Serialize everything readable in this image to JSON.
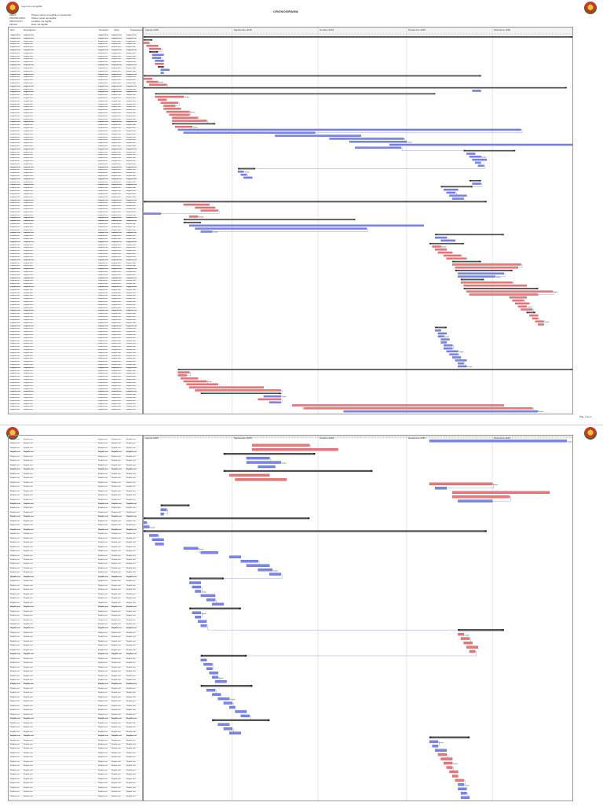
{
  "document": {
    "company_line": "Logo text not legible",
    "summary_label": "CRONOGRAMA",
    "info_labels": [
      "OBRA",
      "PROPIETARIO",
      "UBICACION",
      "FECHA"
    ],
    "info_values": [
      "Project name not legible in screenshot",
      "Owner name not legible",
      "Location not legible",
      "Date not legible"
    ],
    "columns": [
      "Item",
      "Descripcion",
      "Duracion",
      "Inicio",
      "Fin",
      "Predecesoras"
    ],
    "timeline_months": [
      "Agosto 2015",
      "Septiembre 2015",
      "Octubre 2015",
      "Noviembre 2015",
      "Diciembre 2015"
    ],
    "page_label": "Pag. 1 de 2",
    "placeholder_row_text": "Illegible text"
  },
  "colors": {
    "critical": "#e8787a",
    "critical_edge": "#c8383a",
    "normal": "#7a86e8",
    "normal_edge": "#3a46c8",
    "summary": "#555555",
    "link": "#3a46c8"
  },
  "chart_data": [
    {
      "type": "gantt",
      "title": "Schedule - page 1",
      "time_unit": "day index from start of August 2015",
      "axis_range": [
        0,
        150
      ],
      "month_ticks": [
        0,
        31,
        61,
        92,
        122
      ],
      "tasks": [
        {
          "s": 0,
          "d": 150,
          "c": "summary"
        },
        {
          "s": 0,
          "d": 3,
          "c": "summary"
        },
        {
          "s": 0,
          "d": 2,
          "c": "critical"
        },
        {
          "s": 1,
          "d": 4,
          "c": "critical"
        },
        {
          "s": 2,
          "d": 4,
          "c": "critical"
        },
        {
          "s": 2,
          "d": 3,
          "c": "summary"
        },
        {
          "s": 3,
          "d": 4,
          "c": "normal"
        },
        {
          "s": 3,
          "d": 3,
          "c": "normal"
        },
        {
          "s": 4,
          "d": 3,
          "c": "normal"
        },
        {
          "s": 4,
          "d": 3,
          "c": "critical"
        },
        {
          "s": 5,
          "d": 2,
          "c": "summary"
        },
        {
          "s": 6,
          "d": 3,
          "c": "normal"
        },
        {
          "s": 6,
          "d": 1,
          "c": "normal"
        },
        {
          "s": 0,
          "d": 118,
          "c": "summary"
        },
        {
          "s": 0,
          "d": 3,
          "c": "critical"
        },
        {
          "s": 1,
          "d": 4,
          "c": "critical"
        },
        {
          "s": 2,
          "d": 6,
          "c": "critical"
        },
        {
          "s": 0,
          "d": 148,
          "c": "summary"
        },
        {
          "s": 115,
          "d": 3,
          "c": "normal"
        },
        {
          "s": 4,
          "d": 98,
          "c": "summary"
        },
        {
          "s": 4,
          "d": 10,
          "c": "critical"
        },
        {
          "s": 5,
          "d": 3,
          "c": "critical"
        },
        {
          "s": 6,
          "d": 6,
          "c": "critical"
        },
        {
          "s": 7,
          "d": 4,
          "c": "critical"
        },
        {
          "s": 7,
          "d": 6,
          "c": "critical"
        },
        {
          "s": 8,
          "d": 8,
          "c": "critical"
        },
        {
          "s": 9,
          "d": 7,
          "c": "critical"
        },
        {
          "s": 10,
          "d": 9,
          "c": "critical"
        },
        {
          "s": 10,
          "d": 12,
          "c": "critical"
        },
        {
          "s": 10,
          "d": 15,
          "c": "summary"
        },
        {
          "s": 11,
          "d": 6,
          "c": "critical"
        },
        {
          "s": 12,
          "d": 120,
          "c": "normal"
        },
        {
          "s": 14,
          "d": 46,
          "c": "normal"
        },
        {
          "s": 46,
          "d": 30,
          "c": "normal"
        },
        {
          "s": 65,
          "d": 26,
          "c": "normal"
        },
        {
          "s": 72,
          "d": 20,
          "c": "normal"
        },
        {
          "s": 86,
          "d": 64,
          "c": "normal"
        },
        {
          "s": 74,
          "d": 16,
          "c": "normal"
        },
        {
          "s": 112,
          "d": 18,
          "c": "summary"
        },
        {
          "s": 113,
          "d": 3,
          "c": "normal"
        },
        {
          "s": 114,
          "d": 4,
          "c": "normal"
        },
        {
          "s": 115,
          "d": 5,
          "c": "normal"
        },
        {
          "s": 116,
          "d": 2,
          "c": "normal"
        },
        {
          "s": 117,
          "d": 2,
          "c": "normal"
        },
        {
          "s": 33,
          "d": 6,
          "c": "summary"
        },
        {
          "s": 33,
          "d": 2,
          "c": "normal"
        },
        {
          "s": 34,
          "d": 2,
          "c": "normal"
        },
        {
          "s": 35,
          "d": 3,
          "c": "normal"
        },
        {
          "s": 114,
          "d": 4,
          "c": "summary"
        },
        {
          "s": 115,
          "d": 3,
          "c": "normal"
        },
        {
          "s": 104,
          "d": 11,
          "c": "summary"
        },
        {
          "s": 105,
          "d": 5,
          "c": "normal"
        },
        {
          "s": 106,
          "d": 3,
          "c": "normal"
        },
        {
          "s": 107,
          "d": 6,
          "c": "normal"
        },
        {
          "s": 108,
          "d": 4,
          "c": "normal"
        },
        {
          "s": 0,
          "d": 120,
          "c": "summary"
        },
        {
          "s": 14,
          "d": 9,
          "c": "critical"
        },
        {
          "s": 18,
          "d": 7,
          "c": "critical"
        },
        {
          "s": 20,
          "d": 6,
          "c": "critical"
        },
        {
          "s": 0,
          "d": 6,
          "c": "normal"
        },
        {
          "s": 16,
          "d": 3,
          "c": "critical"
        },
        {
          "s": 14,
          "d": 60,
          "c": "summary"
        },
        {
          "s": 14,
          "d": 6,
          "c": "summary"
        },
        {
          "s": 16,
          "d": 82,
          "c": "normal"
        },
        {
          "s": 18,
          "d": 60,
          "c": "normal"
        },
        {
          "s": 20,
          "d": 4,
          "c": "normal"
        },
        {
          "s": 102,
          "d": 24,
          "c": "summary"
        },
        {
          "s": 102,
          "d": 4,
          "c": "normal"
        },
        {
          "s": 104,
          "d": 5,
          "c": "normal"
        },
        {
          "s": 100,
          "d": 12,
          "c": "summary"
        },
        {
          "s": 101,
          "d": 3,
          "c": "critical"
        },
        {
          "s": 102,
          "d": 4,
          "c": "critical"
        },
        {
          "s": 103,
          "d": 5,
          "c": "critical"
        },
        {
          "s": 105,
          "d": 6,
          "c": "critical"
        },
        {
          "s": 106,
          "d": 7,
          "c": "critical"
        },
        {
          "s": 108,
          "d": 10,
          "c": "summary"
        },
        {
          "s": 108,
          "d": 24,
          "c": "critical"
        },
        {
          "s": 109,
          "d": 22,
          "c": "critical"
        },
        {
          "s": 109,
          "d": 20,
          "c": "summary"
        },
        {
          "s": 110,
          "d": 16,
          "c": "normal"
        },
        {
          "s": 110,
          "d": 13,
          "c": "normal"
        },
        {
          "s": 111,
          "d": 8,
          "c": "summary"
        },
        {
          "s": 111,
          "d": 18,
          "c": "critical"
        },
        {
          "s": 112,
          "d": 22,
          "c": "critical"
        },
        {
          "s": 112,
          "d": 26,
          "c": "summary"
        },
        {
          "s": 113,
          "d": 30,
          "c": "critical"
        },
        {
          "s": 114,
          "d": 24,
          "c": "critical"
        },
        {
          "s": 128,
          "d": 6,
          "c": "critical"
        },
        {
          "s": 129,
          "d": 4,
          "c": "critical"
        },
        {
          "s": 130,
          "d": 5,
          "c": "critical"
        },
        {
          "s": 131,
          "d": 3,
          "c": "critical"
        },
        {
          "s": 132,
          "d": 4,
          "c": "critical"
        },
        {
          "s": 134,
          "d": 3,
          "c": "summary"
        },
        {
          "s": 135,
          "d": 3,
          "c": "critical"
        },
        {
          "s": 136,
          "d": 2,
          "c": "critical"
        },
        {
          "s": 137,
          "d": 3,
          "c": "critical"
        },
        {
          "s": 138,
          "d": 2,
          "c": "critical"
        },
        {
          "s": 102,
          "d": 4,
          "c": "summary"
        },
        {
          "s": 102,
          "d": 2,
          "c": "normal"
        },
        {
          "s": 103,
          "d": 3,
          "c": "normal"
        },
        {
          "s": 103,
          "d": 2,
          "c": "normal"
        },
        {
          "s": 104,
          "d": 3,
          "c": "normal"
        },
        {
          "s": 104,
          "d": 2,
          "c": "normal"
        },
        {
          "s": 105,
          "d": 3,
          "c": "normal"
        },
        {
          "s": 105,
          "d": 3,
          "c": "normal"
        },
        {
          "s": 106,
          "d": 4,
          "c": "normal"
        },
        {
          "s": 107,
          "d": 3,
          "c": "normal"
        },
        {
          "s": 108,
          "d": 3,
          "c": "normal"
        },
        {
          "s": 109,
          "d": 4,
          "c": "normal"
        },
        {
          "s": 110,
          "d": 2,
          "c": "normal"
        },
        {
          "s": 110,
          "d": 3,
          "c": "normal"
        },
        {
          "s": 12,
          "d": 138,
          "c": "summary"
        },
        {
          "s": 12,
          "d": 4,
          "c": "critical"
        },
        {
          "s": 12,
          "d": 3,
          "c": "critical"
        },
        {
          "s": 13,
          "d": 6,
          "c": "critical"
        },
        {
          "s": 14,
          "d": 8,
          "c": "critical"
        },
        {
          "s": 15,
          "d": 11,
          "c": "critical"
        },
        {
          "s": 16,
          "d": 26,
          "c": "critical"
        },
        {
          "s": 18,
          "d": 30,
          "c": "critical"
        },
        {
          "s": 20,
          "d": 28,
          "c": "summary"
        },
        {
          "s": 42,
          "d": 6,
          "c": "normal"
        },
        {
          "s": 40,
          "d": 8,
          "c": "critical"
        },
        {
          "s": 44,
          "d": 4,
          "c": "normal"
        },
        {
          "s": 52,
          "d": 74,
          "c": "critical"
        },
        {
          "s": 56,
          "d": 80,
          "c": "critical"
        },
        {
          "s": 70,
          "d": 68,
          "c": "normal"
        }
      ]
    },
    {
      "type": "gantt",
      "title": "Schedule - page 2",
      "time_unit": "day index from start of August 2015",
      "axis_range": [
        0,
        150
      ],
      "month_ticks": [
        0,
        31,
        61,
        92,
        122
      ],
      "tasks": [
        {
          "s": 100,
          "d": 48,
          "c": "normal"
        },
        {
          "s": 38,
          "d": 20,
          "c": "critical"
        },
        {
          "s": 38,
          "d": 30,
          "c": "critical"
        },
        {
          "s": 28,
          "d": 32,
          "c": "summary"
        },
        {
          "s": 36,
          "d": 8,
          "c": "normal"
        },
        {
          "s": 36,
          "d": 12,
          "c": "normal"
        },
        {
          "s": 40,
          "d": 6,
          "c": "normal"
        },
        {
          "s": 28,
          "d": 52,
          "c": "summary"
        },
        {
          "s": 30,
          "d": 14,
          "c": "critical"
        },
        {
          "s": 32,
          "d": 18,
          "c": "critical"
        },
        {
          "s": 100,
          "d": 22,
          "c": "critical"
        },
        {
          "s": 102,
          "d": 4,
          "c": "normal"
        },
        {
          "s": 108,
          "d": 34,
          "c": "critical"
        },
        {
          "s": 108,
          "d": 20,
          "c": "critical"
        },
        {
          "s": 110,
          "d": 12,
          "c": "normal"
        },
        {
          "s": 6,
          "d": 10,
          "c": "summary"
        },
        {
          "s": 6,
          "d": 2,
          "c": "normal"
        },
        {
          "s": 6,
          "d": 1,
          "c": "normal"
        },
        {
          "s": 0,
          "d": 58,
          "c": "summary"
        },
        {
          "s": 0,
          "d": 1,
          "c": "normal"
        },
        {
          "s": 0,
          "d": 2,
          "c": "normal"
        },
        {
          "s": 0,
          "d": 120,
          "c": "summary"
        },
        {
          "s": 2,
          "d": 3,
          "c": "normal"
        },
        {
          "s": 3,
          "d": 4,
          "c": "normal"
        },
        {
          "s": 4,
          "d": 3,
          "c": "normal"
        },
        {
          "s": 14,
          "d": 5,
          "c": "normal"
        },
        {
          "s": 20,
          "d": 6,
          "c": "normal"
        },
        {
          "s": 30,
          "d": 4,
          "c": "normal"
        },
        {
          "s": 34,
          "d": 6,
          "c": "normal"
        },
        {
          "s": 36,
          "d": 8,
          "c": "normal"
        },
        {
          "s": 40,
          "d": 5,
          "c": "normal"
        },
        {
          "s": 44,
          "d": 4,
          "c": "normal"
        },
        {
          "s": 16,
          "d": 12,
          "c": "summary"
        },
        {
          "s": 16,
          "d": 4,
          "c": "normal"
        },
        {
          "s": 17,
          "d": 3,
          "c": "normal"
        },
        {
          "s": 18,
          "d": 2,
          "c": "normal"
        },
        {
          "s": 20,
          "d": 5,
          "c": "normal"
        },
        {
          "s": 22,
          "d": 3,
          "c": "normal"
        },
        {
          "s": 24,
          "d": 4,
          "c": "normal"
        },
        {
          "s": 16,
          "d": 18,
          "c": "summary"
        },
        {
          "s": 17,
          "d": 3,
          "c": "normal"
        },
        {
          "s": 18,
          "d": 2,
          "c": "normal"
        },
        {
          "s": 19,
          "d": 3,
          "c": "normal"
        },
        {
          "s": 20,
          "d": 2,
          "c": "normal"
        },
        {
          "s": 110,
          "d": 16,
          "c": "summary"
        },
        {
          "s": 110,
          "d": 2,
          "c": "critical"
        },
        {
          "s": 111,
          "d": 3,
          "c": "critical"
        },
        {
          "s": 112,
          "d": 3,
          "c": "critical"
        },
        {
          "s": 113,
          "d": 4,
          "c": "critical"
        },
        {
          "s": 114,
          "d": 2,
          "c": "critical"
        },
        {
          "s": 20,
          "d": 16,
          "c": "summary"
        },
        {
          "s": 20,
          "d": 2,
          "c": "normal"
        },
        {
          "s": 21,
          "d": 3,
          "c": "normal"
        },
        {
          "s": 22,
          "d": 2,
          "c": "normal"
        },
        {
          "s": 23,
          "d": 3,
          "c": "normal"
        },
        {
          "s": 24,
          "d": 2,
          "c": "normal"
        },
        {
          "s": 25,
          "d": 4,
          "c": "normal"
        },
        {
          "s": 20,
          "d": 18,
          "c": "summary"
        },
        {
          "s": 22,
          "d": 3,
          "c": "normal"
        },
        {
          "s": 24,
          "d": 3,
          "c": "normal"
        },
        {
          "s": 26,
          "d": 4,
          "c": "normal"
        },
        {
          "s": 28,
          "d": 3,
          "c": "normal"
        },
        {
          "s": 30,
          "d": 2,
          "c": "normal"
        },
        {
          "s": 32,
          "d": 4,
          "c": "normal"
        },
        {
          "s": 34,
          "d": 3,
          "c": "normal"
        },
        {
          "s": 24,
          "d": 20,
          "c": "summary"
        },
        {
          "s": 26,
          "d": 4,
          "c": "normal"
        },
        {
          "s": 28,
          "d": 3,
          "c": "normal"
        },
        {
          "s": 30,
          "d": 4,
          "c": "normal"
        },
        {
          "s": 100,
          "d": 14,
          "c": "summary"
        },
        {
          "s": 100,
          "d": 3,
          "c": "normal"
        },
        {
          "s": 101,
          "d": 2,
          "c": "normal"
        },
        {
          "s": 102,
          "d": 4,
          "c": "normal"
        },
        {
          "s": 103,
          "d": 3,
          "c": "critical"
        },
        {
          "s": 104,
          "d": 4,
          "c": "critical"
        },
        {
          "s": 105,
          "d": 3,
          "c": "critical"
        },
        {
          "s": 106,
          "d": 2,
          "c": "critical"
        },
        {
          "s": 107,
          "d": 3,
          "c": "critical"
        },
        {
          "s": 108,
          "d": 2,
          "c": "critical"
        },
        {
          "s": 109,
          "d": 3,
          "c": "critical"
        },
        {
          "s": 110,
          "d": 2,
          "c": "normal"
        },
        {
          "s": 110,
          "d": 3,
          "c": "normal"
        },
        {
          "s": 111,
          "d": 2,
          "c": "normal"
        },
        {
          "s": 111,
          "d": 3,
          "c": "normal"
        }
      ]
    }
  ]
}
